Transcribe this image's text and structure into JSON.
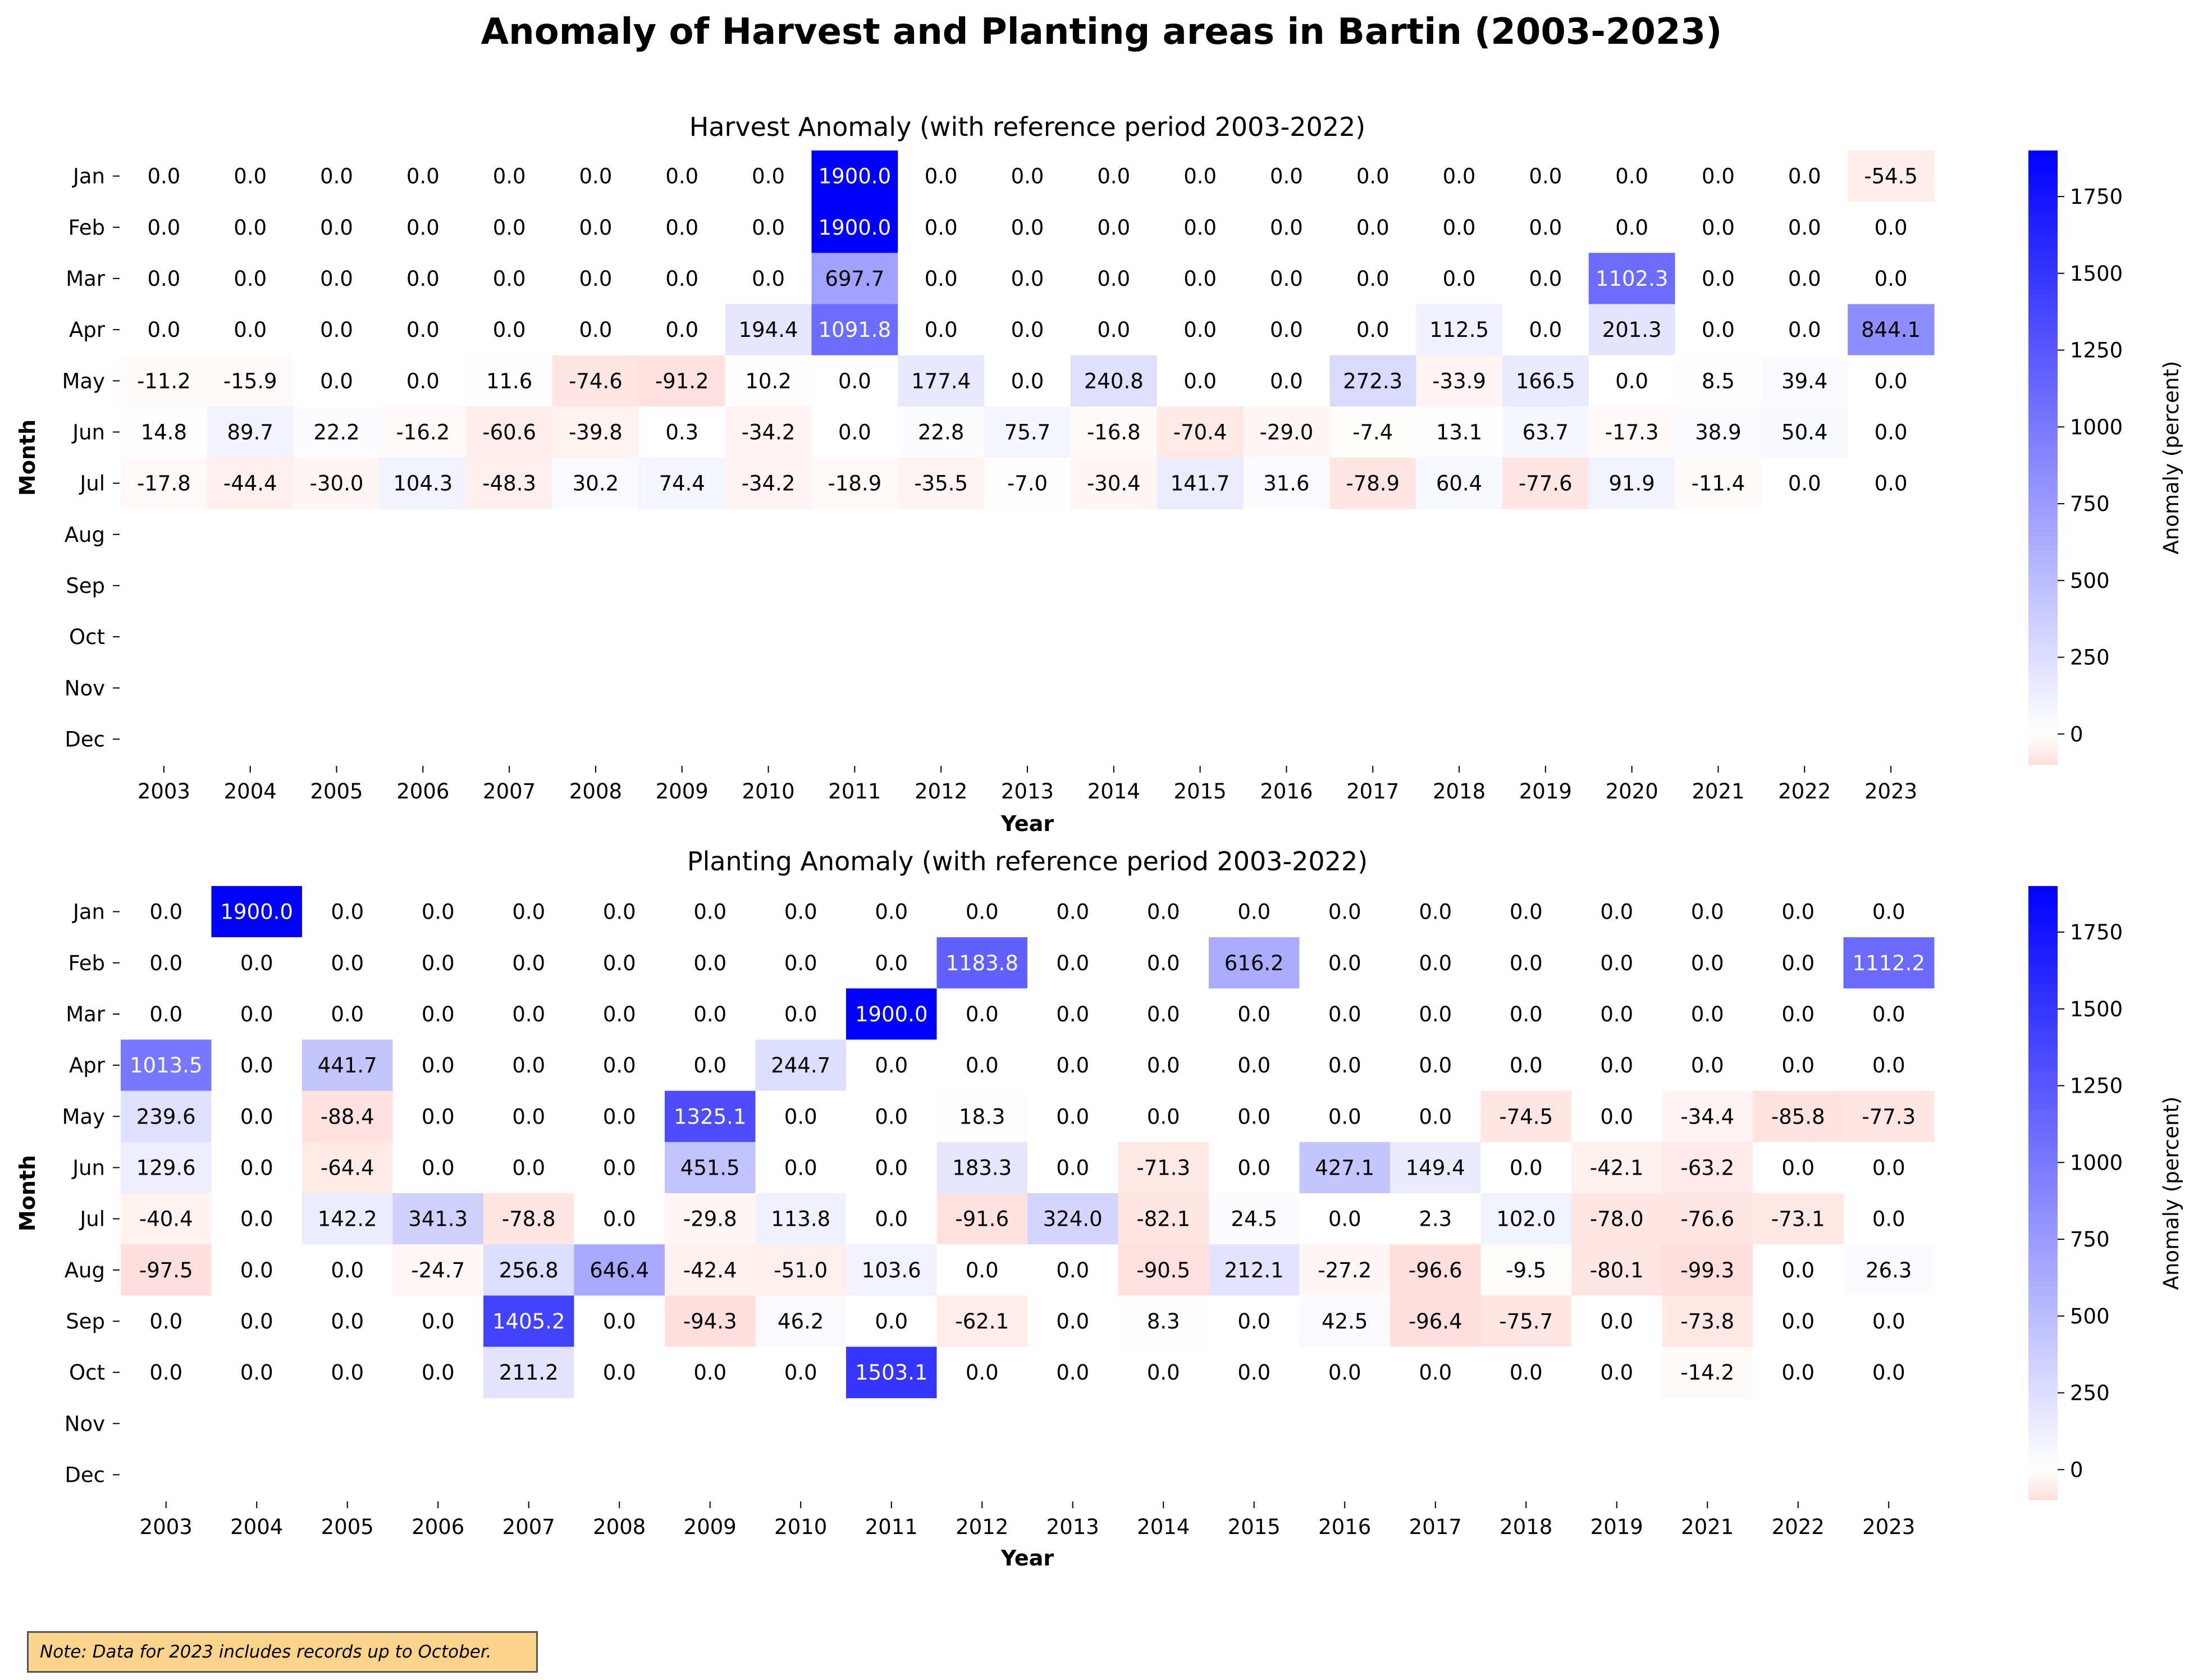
{
  "title": "Anomaly of Harvest and Planting areas in Bartin (2003-2023)",
  "note": "Note: Data for 2023 includes records up to October.",
  "colors": {
    "negative": "#ffdedc",
    "zero": "#ffffff",
    "positive_max": "#0000ff",
    "note_bg": "#fcd38b"
  },
  "chart_data": [
    {
      "type": "heatmap",
      "title": "Harvest Anomaly (with reference period 2003-2022)",
      "xlabel": "Year",
      "ylabel": "Month",
      "colorbar_label": "Anomaly (percent)",
      "colorbar_ticks": [
        0,
        250,
        500,
        750,
        1000,
        1250,
        1500,
        1750
      ],
      "vmin": -100,
      "vmax": 1900,
      "x": [
        "2003",
        "2004",
        "2005",
        "2006",
        "2007",
        "2008",
        "2009",
        "2010",
        "2011",
        "2012",
        "2013",
        "2014",
        "2015",
        "2016",
        "2017",
        "2018",
        "2019",
        "2020",
        "2021",
        "2022",
        "2023"
      ],
      "y": [
        "Jan",
        "Feb",
        "Mar",
        "Apr",
        "May",
        "Jun",
        "Jul",
        "Aug",
        "Sep",
        "Oct",
        "Nov",
        "Dec"
      ],
      "values": [
        [
          0.0,
          0.0,
          0.0,
          0.0,
          0.0,
          0.0,
          0.0,
          0.0,
          1900.0,
          0.0,
          0.0,
          0.0,
          0.0,
          0.0,
          0.0,
          0.0,
          0.0,
          0.0,
          0.0,
          0.0,
          -54.5
        ],
        [
          0.0,
          0.0,
          0.0,
          0.0,
          0.0,
          0.0,
          0.0,
          0.0,
          1900.0,
          0.0,
          0.0,
          0.0,
          0.0,
          0.0,
          0.0,
          0.0,
          0.0,
          0.0,
          0.0,
          0.0,
          0.0
        ],
        [
          0.0,
          0.0,
          0.0,
          0.0,
          0.0,
          0.0,
          0.0,
          0.0,
          697.7,
          0.0,
          0.0,
          0.0,
          0.0,
          0.0,
          0.0,
          0.0,
          0.0,
          1102.3,
          0.0,
          0.0,
          0.0
        ],
        [
          0.0,
          0.0,
          0.0,
          0.0,
          0.0,
          0.0,
          0.0,
          194.4,
          1091.8,
          0.0,
          0.0,
          0.0,
          0.0,
          0.0,
          0.0,
          112.5,
          0.0,
          201.3,
          0.0,
          0.0,
          844.1
        ],
        [
          -11.2,
          -15.9,
          0.0,
          0.0,
          11.6,
          -74.6,
          -91.2,
          10.2,
          0.0,
          177.4,
          0.0,
          240.8,
          0.0,
          0.0,
          272.3,
          -33.9,
          166.5,
          0.0,
          8.5,
          39.4,
          0.0
        ],
        [
          14.8,
          89.7,
          22.2,
          -16.2,
          -60.6,
          -39.8,
          0.3,
          -34.2,
          0.0,
          22.8,
          75.7,
          -16.8,
          -70.4,
          -29.0,
          -7.4,
          13.1,
          63.7,
          -17.3,
          38.9,
          50.4,
          0.0
        ],
        [
          -17.8,
          -44.4,
          -30.0,
          104.3,
          -48.3,
          30.2,
          74.4,
          -34.2,
          -18.9,
          -35.5,
          -7.0,
          -30.4,
          141.7,
          31.6,
          -78.9,
          60.4,
          -77.6,
          91.9,
          -11.4,
          0.0,
          0.0
        ],
        [
          null,
          null,
          null,
          null,
          null,
          null,
          null,
          null,
          null,
          null,
          null,
          null,
          null,
          null,
          null,
          null,
          null,
          null,
          null,
          null,
          null
        ],
        [
          null,
          null,
          null,
          null,
          null,
          null,
          null,
          null,
          null,
          null,
          null,
          null,
          null,
          null,
          null,
          null,
          null,
          null,
          null,
          null,
          null
        ],
        [
          null,
          null,
          null,
          null,
          null,
          null,
          null,
          null,
          null,
          null,
          null,
          null,
          null,
          null,
          null,
          null,
          null,
          null,
          null,
          null,
          null
        ],
        [
          null,
          null,
          null,
          null,
          null,
          null,
          null,
          null,
          null,
          null,
          null,
          null,
          null,
          null,
          null,
          null,
          null,
          null,
          null,
          null,
          null
        ],
        [
          null,
          null,
          null,
          null,
          null,
          null,
          null,
          null,
          null,
          null,
          null,
          null,
          null,
          null,
          null,
          null,
          null,
          null,
          null,
          null,
          null
        ]
      ]
    },
    {
      "type": "heatmap",
      "title": "Planting Anomaly (with reference period 2003-2022)",
      "xlabel": "Year",
      "ylabel": "Month",
      "colorbar_label": "Anomaly (percent)",
      "colorbar_ticks": [
        0,
        250,
        500,
        750,
        1000,
        1250,
        1500,
        1750
      ],
      "vmin": -100,
      "vmax": 1900,
      "x": [
        "2003",
        "2004",
        "2005",
        "2006",
        "2007",
        "2008",
        "2009",
        "2010",
        "2011",
        "2012",
        "2013",
        "2014",
        "2015",
        "2016",
        "2017",
        "2018",
        "2019",
        "2021",
        "2022",
        "2023"
      ],
      "y": [
        "Jan",
        "Feb",
        "Mar",
        "Apr",
        "May",
        "Jun",
        "Jul",
        "Aug",
        "Sep",
        "Oct",
        "Nov",
        "Dec"
      ],
      "values": [
        [
          0.0,
          1900.0,
          0.0,
          0.0,
          0.0,
          0.0,
          0.0,
          0.0,
          0.0,
          0.0,
          0.0,
          0.0,
          0.0,
          0.0,
          0.0,
          0.0,
          0.0,
          0.0,
          0.0,
          0.0
        ],
        [
          0.0,
          0.0,
          0.0,
          0.0,
          0.0,
          0.0,
          0.0,
          0.0,
          0.0,
          1183.8,
          0.0,
          0.0,
          616.2,
          0.0,
          0.0,
          0.0,
          0.0,
          0.0,
          0.0,
          1112.2
        ],
        [
          0.0,
          0.0,
          0.0,
          0.0,
          0.0,
          0.0,
          0.0,
          0.0,
          1900.0,
          0.0,
          0.0,
          0.0,
          0.0,
          0.0,
          0.0,
          0.0,
          0.0,
          0.0,
          0.0,
          0.0
        ],
        [
          1013.5,
          0.0,
          441.7,
          0.0,
          0.0,
          0.0,
          0.0,
          244.7,
          0.0,
          0.0,
          0.0,
          0.0,
          0.0,
          0.0,
          0.0,
          0.0,
          0.0,
          0.0,
          0.0,
          0.0
        ],
        [
          239.6,
          0.0,
          -88.4,
          0.0,
          0.0,
          0.0,
          1325.1,
          0.0,
          0.0,
          18.3,
          0.0,
          0.0,
          0.0,
          0.0,
          0.0,
          -74.5,
          0.0,
          -34.4,
          -85.8,
          -77.3
        ],
        [
          129.6,
          0.0,
          -64.4,
          0.0,
          0.0,
          0.0,
          451.5,
          0.0,
          0.0,
          183.3,
          0.0,
          -71.3,
          0.0,
          427.1,
          149.4,
          0.0,
          -42.1,
          -63.2,
          0.0,
          0.0
        ],
        [
          -40.4,
          0.0,
          142.2,
          341.3,
          -78.8,
          0.0,
          -29.8,
          113.8,
          0.0,
          -91.6,
          324.0,
          -82.1,
          24.5,
          0.0,
          2.3,
          102.0,
          -78.0,
          -76.6,
          -73.1,
          0.0
        ],
        [
          -97.5,
          0.0,
          0.0,
          -24.7,
          256.8,
          646.4,
          -42.4,
          -51.0,
          103.6,
          0.0,
          0.0,
          -90.5,
          212.1,
          -27.2,
          -96.6,
          -9.5,
          -80.1,
          -99.3,
          0.0,
          26.3
        ],
        [
          0.0,
          0.0,
          0.0,
          0.0,
          1405.2,
          0.0,
          -94.3,
          46.2,
          0.0,
          -62.1,
          0.0,
          8.3,
          0.0,
          42.5,
          -96.4,
          -75.7,
          0.0,
          -73.8,
          0.0,
          0.0
        ],
        [
          0.0,
          0.0,
          0.0,
          0.0,
          211.2,
          0.0,
          0.0,
          0.0,
          1503.1,
          0.0,
          0.0,
          0.0,
          0.0,
          0.0,
          0.0,
          0.0,
          0.0,
          -14.2,
          0.0,
          0.0
        ],
        [
          null,
          null,
          null,
          null,
          null,
          null,
          null,
          null,
          null,
          null,
          null,
          null,
          null,
          null,
          null,
          null,
          null,
          null,
          null,
          null
        ],
        [
          null,
          null,
          null,
          null,
          null,
          null,
          null,
          null,
          null,
          null,
          null,
          null,
          null,
          null,
          null,
          null,
          null,
          null,
          null,
          null
        ]
      ]
    }
  ]
}
